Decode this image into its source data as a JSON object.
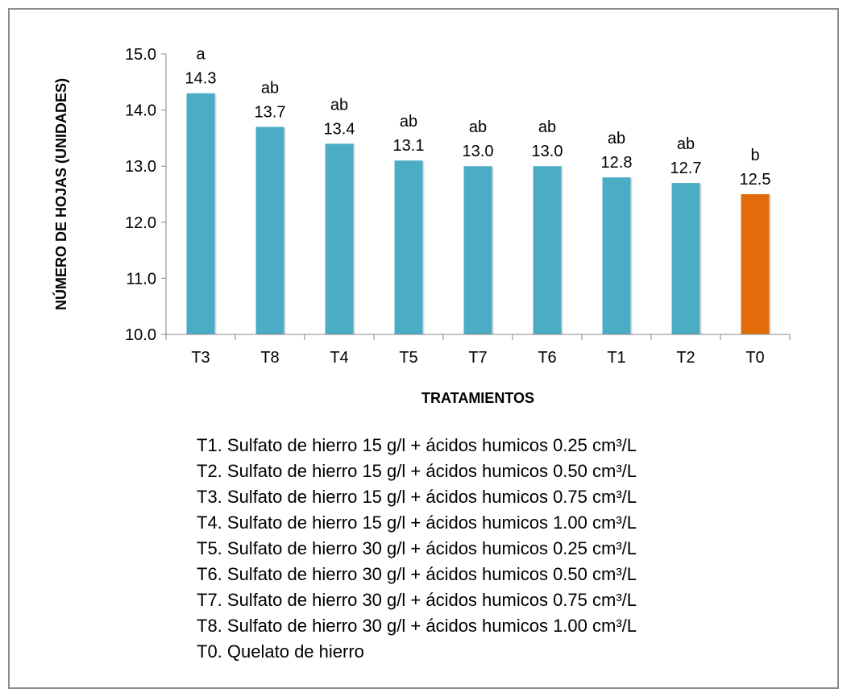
{
  "chart_data": {
    "type": "bar",
    "categories": [
      "T3",
      "T8",
      "T4",
      "T5",
      "T7",
      "T6",
      "T1",
      "T2",
      "T0"
    ],
    "values": [
      14.3,
      13.7,
      13.4,
      13.1,
      13.0,
      13.0,
      12.8,
      12.7,
      12.5
    ],
    "value_labels": [
      "14.3",
      "13.7",
      "13.4",
      "13.1",
      "13.0",
      "13.0",
      "12.8",
      "12.7",
      "12.5"
    ],
    "significance_letters": [
      "a",
      "ab",
      "ab",
      "ab",
      "ab",
      "ab",
      "ab",
      "ab",
      "b"
    ],
    "bar_colors": [
      "#4BACC6",
      "#4BACC6",
      "#4BACC6",
      "#4BACC6",
      "#4BACC6",
      "#4BACC6",
      "#4BACC6",
      "#4BACC6",
      "#E36C0A"
    ],
    "xlabel": "TRATAMIENTOS",
    "ylabel": "NÚMERO DE HOJAS (UNIDADES)",
    "ylim": [
      10.0,
      15.0
    ],
    "yticks": [
      "10.0",
      "11.0",
      "12.0",
      "13.0",
      "14.0",
      "15.0"
    ],
    "grid": false
  },
  "notes": [
    "T1. Sulfato de hierro 15 g/l + ácidos humicos 0.25 cm³/L",
    "T2. Sulfato de hierro 15 g/l + ácidos humicos 0.50 cm³/L",
    "T3. Sulfato de hierro 15 g/l + ácidos humicos 0.75 cm³/L",
    "T4. Sulfato de hierro 15 g/l + ácidos humicos 1.00 cm³/L",
    "T5. Sulfato de hierro 30 g/l + ácidos humicos 0.25 cm³/L",
    "T6. Sulfato de hierro 30 g/l + ácidos humicos 0.50 cm³/L",
    "T7. Sulfato de hierro 30 g/l + ácidos humicos 0.75 cm³/L",
    "T8. Sulfato de hierro 30 g/l + ácidos humicos 1.00 cm³/L",
    "T0. Quelato de hierro"
  ]
}
